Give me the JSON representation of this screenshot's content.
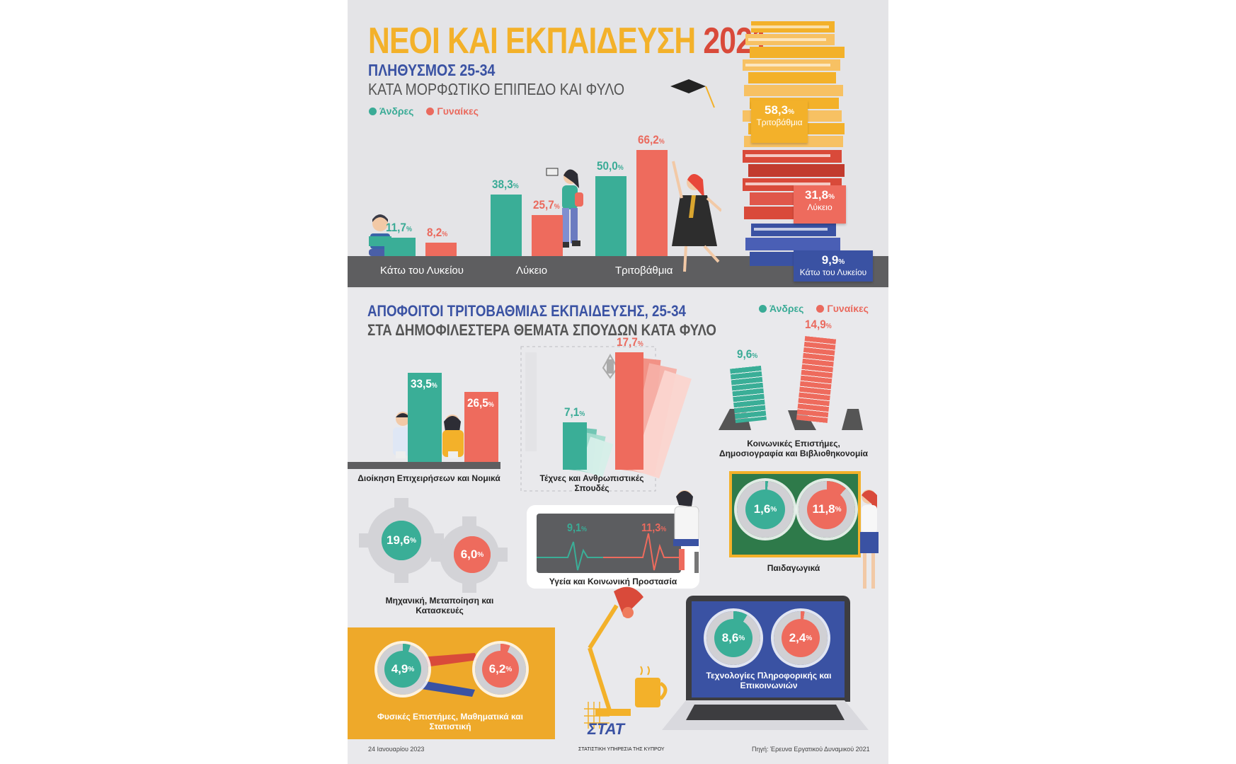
{
  "header": {
    "title_main": "ΝΕΟΙ ΚΑΙ ΕΚΠΑΙΔΕΥΣΗ",
    "title_year": "2021",
    "subtitle1": "ΠΛΗΘΥΣΜΟΣ 25-34",
    "subtitle2": "ΚΑΤΑ ΜΟΡΦΩΤΙΚΟ ΕΠΙΠΕΔΟ ΚΑΙ ΦΥΛΟ"
  },
  "legend": {
    "men": "Άνδρες",
    "women": "Γυναίκες"
  },
  "colors": {
    "men": "#3aae97",
    "women": "#ee6b5d",
    "title": "#f3b12a",
    "year": "#d94a3a",
    "blue": "#3a52a3"
  },
  "section2": {
    "title1": "ΑΠΟΦΟΙΤΟΙ ΤΡΙΤΟΒΑΘΜΙΑΣ ΕΚΠΑΙΔΕΥΣΗΣ, 25-34",
    "title2": "ΣΤΑ ΔΗΜΟΦΙΛΕΣΤΕΡΑ ΘΕΜΑΤΑ ΣΠΟΥΔΩΝ ΚΑΤΑ ΦΥΛΟ"
  },
  "footer": {
    "date": "24 Ιανουαρίου 2023",
    "org": "ΣΤΑΤΙΣΤΙΚΗ ΥΠΗΡΕΣΙΑ ΤΗΣ ΚΥΠΡΟΥ",
    "logo": "ΣΤΑΤ",
    "source": "Πηγή: Έρευνα Εργατικού Δυναμικού 2021"
  },
  "chart_data": [
    {
      "type": "bar",
      "categories": [
        "Κάτω του Λυκείου",
        "Λύκειο",
        "Τριτοβάθμια"
      ],
      "series": [
        {
          "name": "Άνδρες",
          "values": [
            11.7,
            38.3,
            50.0
          ],
          "labels": [
            "11,7",
            "38,3",
            "50,0"
          ]
        },
        {
          "name": "Γυναίκες",
          "values": [
            8.2,
            25.7,
            66.2
          ],
          "labels": [
            "8,2",
            "25,7",
            "66,2"
          ]
        }
      ],
      "unit": "%"
    },
    {
      "type": "bar",
      "categories": [
        "Τριτοβάθμια",
        "Λύκειο",
        "Κάτω του Λυκείου"
      ],
      "values": [
        58.3,
        31.8,
        9.9
      ],
      "labels": [
        "58,3",
        "31,8",
        "9,9"
      ],
      "unit": "%"
    },
    {
      "type": "bar",
      "categories": [
        "Διοίκηση Επιχειρήσεων και Νομικά",
        "Τέχνες και Ανθρωπιστικές Σπουδές",
        "Κοινωνικές Επιστήμες, Δημοσιογραφία και Βιβλιοθηκονομία",
        "Μηχανική, Μεταποίηση και Κατασκευές",
        "Υγεία και Κοινωνική Προστασία",
        "Παιδαγωγικά",
        "Φυσικές Επιστήμες, Μαθηματικά και Στατιστική",
        "Τεχνολογίες Πληροφορικής και Επικοινωνιών"
      ],
      "series": [
        {
          "name": "Άνδρες",
          "values": [
            33.5,
            7.1,
            9.6,
            19.6,
            9.1,
            1.6,
            4.9,
            8.6
          ],
          "labels": [
            "33,5",
            "7,1",
            "9,6",
            "19,6",
            "9,1",
            "1,6",
            "4,9",
            "8,6"
          ]
        },
        {
          "name": "Γυναίκες",
          "values": [
            26.5,
            17.7,
            14.9,
            6.0,
            11.3,
            11.8,
            6.2,
            2.4
          ],
          "labels": [
            "26,5",
            "17,7",
            "14,9",
            "6,0",
            "11,3",
            "11,8",
            "6,2",
            "2,4"
          ]
        }
      ],
      "unit": "%"
    }
  ]
}
